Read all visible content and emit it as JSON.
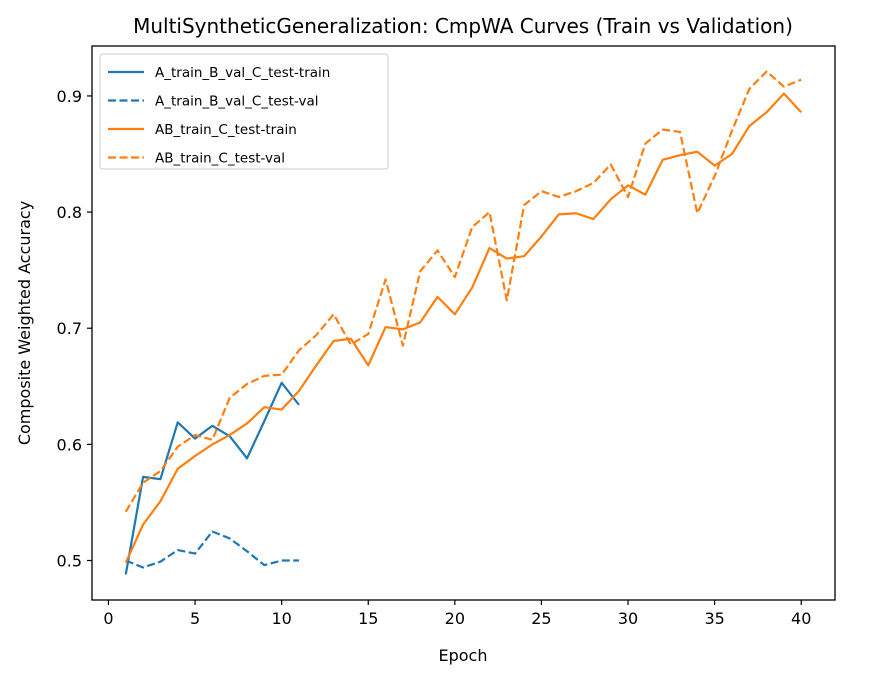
{
  "chart_data": {
    "type": "line",
    "title": "MultiSyntheticGeneralization: CmpWA Curves (Train vs Validation)",
    "xlabel": "Epoch",
    "ylabel": "Composite Weighted Accuracy",
    "xlim": [
      -0.95,
      41.95
    ],
    "ylim": [
      0.466,
      0.943
    ],
    "xticks": [
      0,
      5,
      10,
      15,
      20,
      25,
      30,
      35,
      40
    ],
    "xtick_labels": [
      "0",
      "5",
      "10",
      "15",
      "20",
      "25",
      "30",
      "35",
      "40"
    ],
    "yticks": [
      0.5,
      0.6,
      0.7,
      0.8,
      0.9
    ],
    "ytick_labels": [
      "0.5",
      "0.6",
      "0.7",
      "0.8",
      "0.9"
    ],
    "grid": false,
    "legend_position": "top-left",
    "series": [
      {
        "name": "A_train_B_val_C_test-train",
        "color": "#1f77b4",
        "dash": "solid",
        "x": [
          1,
          2,
          3,
          4,
          5,
          6,
          7,
          8,
          9,
          10,
          11
        ],
        "y": [
          0.488,
          0.572,
          0.57,
          0.619,
          0.605,
          0.616,
          0.607,
          0.588,
          0.62,
          0.653,
          0.634
        ]
      },
      {
        "name": "A_train_B_val_C_test-val",
        "color": "#1f77b4",
        "dash": "dashed",
        "x": [
          1,
          2,
          3,
          4,
          5,
          6,
          7,
          8,
          9,
          10,
          11
        ],
        "y": [
          0.5,
          0.494,
          0.499,
          0.509,
          0.506,
          0.525,
          0.519,
          0.508,
          0.496,
          0.5,
          0.5
        ]
      },
      {
        "name": "AB_train_C_test-train",
        "color": "#ff7f0e",
        "dash": "solid",
        "x": [
          1,
          2,
          3,
          4,
          5,
          6,
          7,
          8,
          9,
          10,
          11,
          12,
          13,
          14,
          15,
          16,
          17,
          18,
          19,
          20,
          21,
          22,
          23,
          24,
          25,
          26,
          27,
          28,
          29,
          30,
          31,
          32,
          33,
          34,
          35,
          36,
          37,
          38,
          39,
          40
        ],
        "y": [
          0.498,
          0.531,
          0.551,
          0.579,
          0.59,
          0.6,
          0.608,
          0.618,
          0.632,
          0.63,
          0.646,
          0.668,
          0.689,
          0.691,
          0.668,
          0.701,
          0.699,
          0.705,
          0.727,
          0.712,
          0.735,
          0.769,
          0.76,
          0.762,
          0.779,
          0.798,
          0.799,
          0.794,
          0.811,
          0.823,
          0.815,
          0.845,
          0.849,
          0.852,
          0.84,
          0.85,
          0.874,
          0.886,
          0.902,
          0.886
        ]
      },
      {
        "name": "AB_train_C_test-val",
        "color": "#ff7f0e",
        "dash": "dashed",
        "x": [
          1,
          2,
          3,
          4,
          5,
          6,
          7,
          8,
          9,
          10,
          11,
          12,
          13,
          14,
          15,
          16,
          17,
          18,
          19,
          20,
          21,
          22,
          23,
          24,
          25,
          26,
          27,
          28,
          29,
          30,
          31,
          32,
          33,
          34,
          35,
          36,
          37,
          38,
          39,
          40
        ],
        "y": [
          0.542,
          0.567,
          0.577,
          0.598,
          0.608,
          0.604,
          0.64,
          0.652,
          0.659,
          0.66,
          0.681,
          0.694,
          0.712,
          0.686,
          0.695,
          0.742,
          0.685,
          0.749,
          0.767,
          0.744,
          0.787,
          0.8,
          0.724,
          0.806,
          0.818,
          0.813,
          0.818,
          0.825,
          0.841,
          0.813,
          0.859,
          0.871,
          0.869,
          0.799,
          0.831,
          0.87,
          0.906,
          0.921,
          0.908,
          0.914
        ]
      }
    ]
  }
}
